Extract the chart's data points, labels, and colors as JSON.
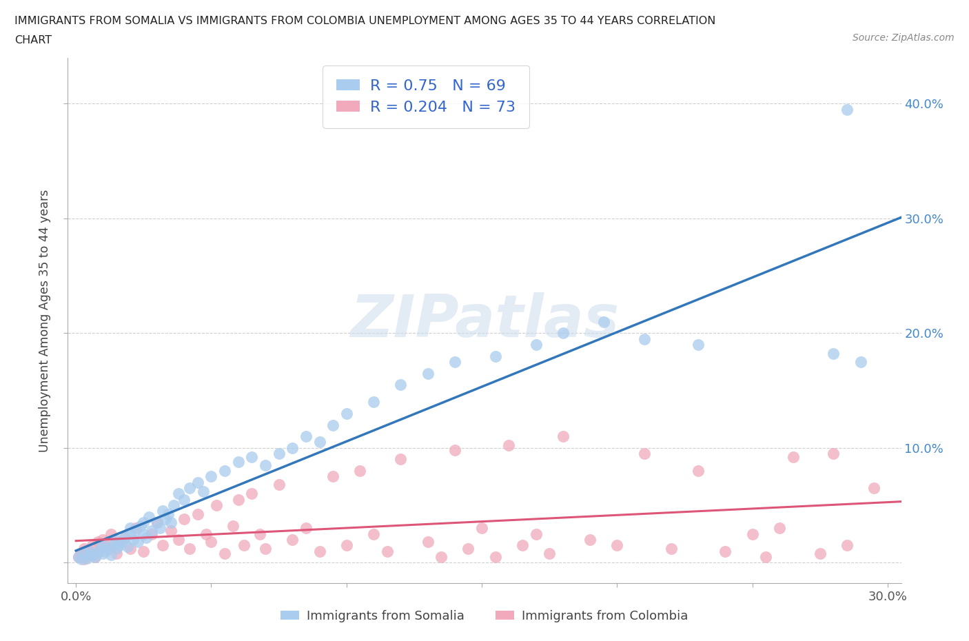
{
  "title_line1": "IMMIGRANTS FROM SOMALIA VS IMMIGRANTS FROM COLOMBIA UNEMPLOYMENT AMONG AGES 35 TO 44 YEARS CORRELATION",
  "title_line2": "CHART",
  "source_text": "Source: ZipAtlas.com",
  "ylabel": "Unemployment Among Ages 35 to 44 years",
  "xlim": [
    -0.003,
    0.305
  ],
  "ylim": [
    -0.018,
    0.44
  ],
  "xtick_positions": [
    0.0,
    0.05,
    0.1,
    0.15,
    0.2,
    0.25,
    0.3
  ],
  "xtick_labels": [
    "0.0%",
    "",
    "",
    "",
    "",
    "",
    "30.0%"
  ],
  "ytick_positions": [
    0.0,
    0.1,
    0.2,
    0.3,
    0.4
  ],
  "ytick_labels_right": [
    "",
    "10.0%",
    "20.0%",
    "30.0%",
    "40.0%"
  ],
  "somalia_R": 0.75,
  "somalia_N": 69,
  "colombia_R": 0.204,
  "colombia_N": 73,
  "somalia_color": "#aaccee",
  "colombia_color": "#f0aabb",
  "somalia_line_color": "#3377bb",
  "colombia_line_color": "#dd5577",
  "legend_text_color": "#3366cc",
  "watermark": "ZIPatlas",
  "background_color": "#ffffff",
  "grid_color": "#bbbbbb",
  "somalia_x": [
    0.001,
    0.002,
    0.003,
    0.004,
    0.005,
    0.005,
    0.006,
    0.007,
    0.008,
    0.009,
    0.01,
    0.01,
    0.011,
    0.012,
    0.013,
    0.014,
    0.015,
    0.015,
    0.016,
    0.017,
    0.018,
    0.019,
    0.02,
    0.02,
    0.021,
    0.022,
    0.023,
    0.024,
    0.025,
    0.025,
    0.026,
    0.027,
    0.028,
    0.03,
    0.031,
    0.032,
    0.033,
    0.034,
    0.035,
    0.036,
    0.038,
    0.04,
    0.042,
    0.045,
    0.047,
    0.05,
    0.055,
    0.06,
    0.065,
    0.07,
    0.075,
    0.08,
    0.085,
    0.09,
    0.095,
    0.1,
    0.11,
    0.12,
    0.13,
    0.14,
    0.155,
    0.17,
    0.18,
    0.195,
    0.21,
    0.23,
    0.28,
    0.285,
    0.29
  ],
  "somalia_y": [
    0.005,
    0.003,
    0.008,
    0.004,
    0.006,
    0.01,
    0.007,
    0.005,
    0.009,
    0.012,
    0.008,
    0.015,
    0.01,
    0.013,
    0.007,
    0.016,
    0.012,
    0.02,
    0.015,
    0.018,
    0.022,
    0.014,
    0.025,
    0.03,
    0.02,
    0.028,
    0.018,
    0.032,
    0.025,
    0.035,
    0.022,
    0.04,
    0.028,
    0.035,
    0.03,
    0.045,
    0.038,
    0.042,
    0.035,
    0.05,
    0.06,
    0.055,
    0.065,
    0.07,
    0.062,
    0.075,
    0.08,
    0.088,
    0.092,
    0.085,
    0.095,
    0.1,
    0.11,
    0.105,
    0.12,
    0.13,
    0.14,
    0.155,
    0.165,
    0.175,
    0.18,
    0.19,
    0.2,
    0.21,
    0.195,
    0.19,
    0.182,
    0.395,
    0.175
  ],
  "colombia_x": [
    0.001,
    0.002,
    0.003,
    0.003,
    0.004,
    0.005,
    0.006,
    0.007,
    0.008,
    0.008,
    0.009,
    0.01,
    0.012,
    0.013,
    0.015,
    0.016,
    0.018,
    0.02,
    0.022,
    0.025,
    0.028,
    0.03,
    0.032,
    0.035,
    0.038,
    0.04,
    0.042,
    0.045,
    0.048,
    0.05,
    0.052,
    0.055,
    0.058,
    0.06,
    0.062,
    0.065,
    0.068,
    0.07,
    0.075,
    0.08,
    0.085,
    0.09,
    0.095,
    0.1,
    0.105,
    0.11,
    0.115,
    0.12,
    0.13,
    0.135,
    0.14,
    0.145,
    0.15,
    0.155,
    0.16,
    0.165,
    0.17,
    0.175,
    0.18,
    0.19,
    0.2,
    0.21,
    0.22,
    0.23,
    0.24,
    0.25,
    0.255,
    0.26,
    0.265,
    0.275,
    0.28,
    0.285,
    0.295
  ],
  "colombia_y": [
    0.005,
    0.008,
    0.003,
    0.012,
    0.007,
    0.01,
    0.015,
    0.005,
    0.018,
    0.009,
    0.012,
    0.02,
    0.015,
    0.025,
    0.008,
    0.018,
    0.022,
    0.012,
    0.03,
    0.01,
    0.025,
    0.035,
    0.015,
    0.028,
    0.02,
    0.038,
    0.012,
    0.042,
    0.025,
    0.018,
    0.05,
    0.008,
    0.032,
    0.055,
    0.015,
    0.06,
    0.025,
    0.012,
    0.068,
    0.02,
    0.03,
    0.01,
    0.075,
    0.015,
    0.08,
    0.025,
    0.01,
    0.09,
    0.018,
    0.005,
    0.098,
    0.012,
    0.03,
    0.005,
    0.102,
    0.015,
    0.025,
    0.008,
    0.11,
    0.02,
    0.015,
    0.095,
    0.012,
    0.08,
    0.01,
    0.025,
    0.005,
    0.03,
    0.092,
    0.008,
    0.095,
    0.015,
    0.065
  ]
}
